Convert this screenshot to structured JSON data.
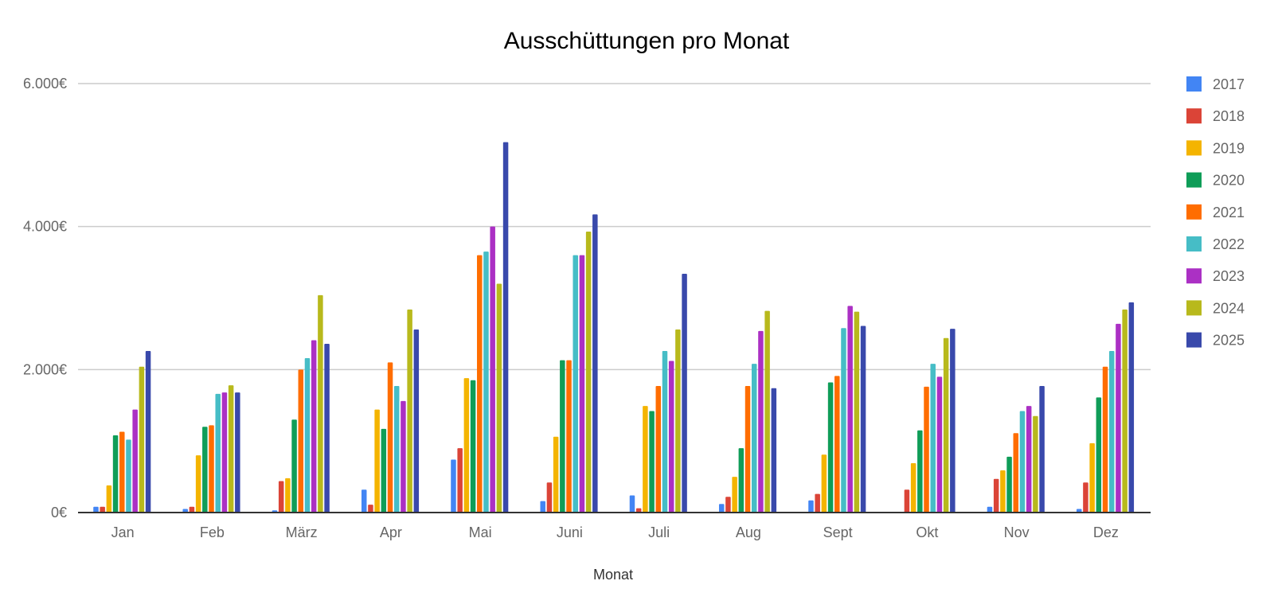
{
  "chart_data": {
    "type": "bar",
    "title": "Ausschüttungen pro Monat",
    "xlabel": "Monat",
    "ylabel": "",
    "ylim": [
      0,
      6000
    ],
    "y_ticks": [
      0,
      2000,
      4000,
      6000
    ],
    "y_tick_labels": [
      "0€",
      "2.000€",
      "4.000€",
      "6.000€"
    ],
    "grid": true,
    "legend_position": "right",
    "categories": [
      "Jan",
      "Feb",
      "März",
      "Apr",
      "Mai",
      "Juni",
      "Juli",
      "Aug",
      "Sept",
      "Okt",
      "Nov",
      "Dez"
    ],
    "series": [
      {
        "name": "2017",
        "color": "#4285f4",
        "values": [
          80,
          50,
          30,
          320,
          740,
          160,
          240,
          120,
          170,
          10,
          80,
          50
        ]
      },
      {
        "name": "2018",
        "color": "#db4437",
        "values": [
          80,
          80,
          440,
          110,
          900,
          420,
          60,
          220,
          260,
          320,
          470,
          420
        ]
      },
      {
        "name": "2019",
        "color": "#f4b400",
        "values": [
          380,
          800,
          480,
          1440,
          1880,
          1060,
          1490,
          500,
          810,
          690,
          590,
          970
        ]
      },
      {
        "name": "2020",
        "color": "#0f9d58",
        "values": [
          1080,
          1200,
          1300,
          1170,
          1850,
          2130,
          1420,
          900,
          1820,
          1150,
          780,
          1610
        ]
      },
      {
        "name": "2021",
        "color": "#ff6d00",
        "values": [
          1130,
          1220,
          2000,
          2100,
          3600,
          2130,
          1770,
          1770,
          1910,
          1760,
          1110,
          2040
        ]
      },
      {
        "name": "2022",
        "color": "#46bdc6",
        "values": [
          1020,
          1660,
          2160,
          1770,
          3650,
          3600,
          2260,
          2080,
          2580,
          2080,
          1420,
          2260
        ]
      },
      {
        "name": "2023",
        "color": "#ab30c4",
        "values": [
          1440,
          1680,
          2410,
          1560,
          4000,
          3600,
          2120,
          2540,
          2890,
          1900,
          1490,
          2640
        ]
      },
      {
        "name": "2024",
        "color": "#b8b91c",
        "values": [
          2040,
          1780,
          3040,
          2840,
          3200,
          3930,
          2560,
          2820,
          2810,
          2440,
          1350,
          2840
        ]
      },
      {
        "name": "2025",
        "color": "#3949ab",
        "values": [
          2260,
          1680,
          2360,
          2560,
          5180,
          4170,
          3340,
          1740,
          2610,
          2570,
          1770,
          2940
        ]
      }
    ]
  }
}
